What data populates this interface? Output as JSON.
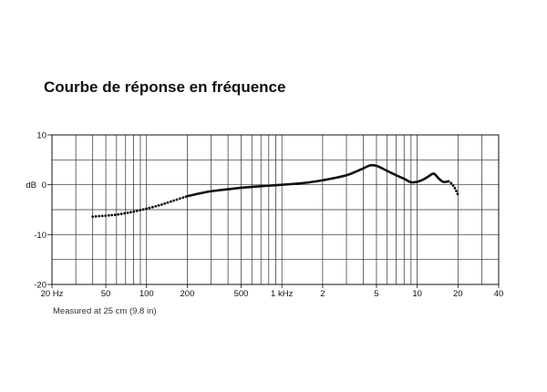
{
  "chart_data": {
    "type": "line",
    "title": "Courbe de réponse en fréquence",
    "xlabel": "",
    "ylabel": "dB",
    "x_scale": "log",
    "xlim": [
      20,
      40000
    ],
    "ylim": [
      -20,
      10
    ],
    "grid": true,
    "x_grid": [
      20,
      30,
      40,
      50,
      60,
      70,
      80,
      90,
      100,
      200,
      300,
      400,
      500,
      600,
      700,
      800,
      900,
      1000,
      2000,
      3000,
      4000,
      5000,
      6000,
      7000,
      8000,
      9000,
      10000,
      20000,
      30000,
      40000
    ],
    "y_grid": [
      10,
      5,
      0,
      -5,
      -10,
      -15,
      -20
    ],
    "x_ticks": [
      {
        "value": 20,
        "label": "20 Hz"
      },
      {
        "value": 50,
        "label": "50"
      },
      {
        "value": 100,
        "label": "100"
      },
      {
        "value": 200,
        "label": "200"
      },
      {
        "value": 500,
        "label": "500"
      },
      {
        "value": 1000,
        "label": "1 kHz"
      },
      {
        "value": 2000,
        "label": "2"
      },
      {
        "value": 5000,
        "label": "5"
      },
      {
        "value": 10000,
        "label": "10"
      },
      {
        "value": 20000,
        "label": "20"
      },
      {
        "value": 40000,
        "label": "40"
      }
    ],
    "y_ticks": [
      {
        "value": 10,
        "label": "10"
      },
      {
        "value": 0,
        "label": "0"
      },
      {
        "value": -10,
        "label": "-10"
      },
      {
        "value": -20,
        "label": "-20"
      }
    ],
    "series": [
      {
        "color": "#111111",
        "segments": [
          {
            "style": "dotted",
            "x": [
              40,
              50,
              60,
              70,
              80,
              100,
              125,
              150,
              200
            ],
            "y": [
              -6.4,
              -6.2,
              -6.0,
              -5.7,
              -5.4,
              -4.8,
              -4.1,
              -3.4,
              -2.3
            ]
          },
          {
            "style": "solid",
            "x": [
              200,
              250,
              300,
              400,
              500,
              700,
              1000,
              1500,
              2000,
              2500,
              3000,
              3500,
              4000,
              4500,
              5000,
              5500,
              6300,
              7000,
              8000,
              9000,
              10000,
              11000,
              12000,
              13000,
              13500,
              14500,
              15500,
              16500,
              17000
            ],
            "y": [
              -2.3,
              -1.7,
              -1.3,
              -0.9,
              -0.6,
              -0.3,
              0,
              0.4,
              0.9,
              1.4,
              1.9,
              2.6,
              3.3,
              3.9,
              3.8,
              3.3,
              2.5,
              1.9,
              1.2,
              0.5,
              0.6,
              1.0,
              1.6,
              2.2,
              2.1,
              1.2,
              0.6,
              0.6,
              0.7
            ]
          },
          {
            "style": "dotted",
            "x": [
              17000,
              18000,
              19000,
              20000
            ],
            "y": [
              0.7,
              0.2,
              -0.7,
              -2.0
            ]
          }
        ]
      }
    ],
    "note": "Measured at 25 cm (9.8 in)"
  }
}
